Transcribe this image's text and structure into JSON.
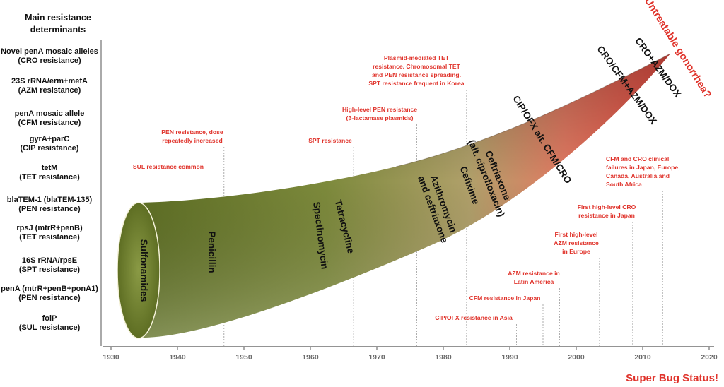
{
  "determinants": {
    "title": [
      "Main resistance",
      "determinants"
    ],
    "items": [
      {
        "line1": "Novel penA mosaic alleles",
        "line2": "(CRO resistance)"
      },
      {
        "line1": "23S rRNA/erm+mefA",
        "line2": "(AZM resistance)"
      },
      {
        "line1": "penA mosaic allele",
        "line2": "(CFM resistance)"
      },
      {
        "line1": "gyrA+parC",
        "line2": "(CIP resistance)"
      },
      {
        "line1": "tetM",
        "line2": "(TET resistance)"
      },
      {
        "line1": "blaTEM-1 (blaTEM-135)",
        "line2": "(PEN resistance)"
      },
      {
        "line1": "rpsJ (mtrR+penB)",
        "line2": "(TET resistance)"
      },
      {
        "line1": "16S rRNA/rpsE",
        "line2": "(SPT resistance)"
      },
      {
        "line1": "penA (mtrR+penB+ponA1)",
        "line2": "(PEN resistance)"
      },
      {
        "line1": "folP",
        "line2": "(SUL resistance)"
      }
    ]
  },
  "axis": {
    "years": [
      "1930",
      "1940",
      "1950",
      "1960",
      "1970",
      "1980",
      "1990",
      "2000",
      "2010",
      "2020"
    ],
    "min_year": 1930,
    "max_year": 2020
  },
  "drugs": [
    {
      "label": "Sulfonamides"
    },
    {
      "label": "Penicillin"
    },
    {
      "label": "Spectinomycin"
    },
    {
      "label": "Tetracycline"
    },
    {
      "label": "Azithromycin",
      "label2": "and ceftriaxone"
    },
    {
      "label": "Cefixime"
    },
    {
      "label": "Ceftriaxone",
      "label2": "(alt. ciprofloxacin)"
    },
    {
      "label": "CIP/OFX alt. CFM/CRO"
    },
    {
      "label": "CRO/CFM+AZM/DOX"
    },
    {
      "label": "CRO+AZM/DOX"
    }
  ],
  "events": [
    {
      "year": 1944,
      "lines": [
        "SUL resistance common"
      ]
    },
    {
      "year": 1947,
      "lines": [
        "PEN resistance, dose",
        "repeatedly increased"
      ]
    },
    {
      "year": 1966.5,
      "lines": [
        "SPT resistance"
      ]
    },
    {
      "year": 1976,
      "lines": [
        "High-level PEN resistance",
        "(β-lactamase plasmids)"
      ]
    },
    {
      "year": 1983.5,
      "lines": [
        "Plasmid-mediated TET",
        "resistance. Chromosomal TET",
        "and PEN resistance spreading.",
        "SPT resistance frequent in Korea"
      ]
    },
    {
      "year": 1991,
      "lines": [
        "CIP/OFX resistance in Asia"
      ]
    },
    {
      "year": 1995,
      "lines": [
        "CFM resistance in Japan"
      ]
    },
    {
      "year": 1997.5,
      "lines": [
        "AZM resistance in",
        "Latin America"
      ]
    },
    {
      "year": 2003.5,
      "lines": [
        "First high-level",
        "AZM resistance",
        "in Europe"
      ]
    },
    {
      "year": 2008.5,
      "lines": [
        "First high-level CRO",
        "resistance in Japan"
      ]
    },
    {
      "year": 2013,
      "lines": [
        "CFM and CRO clinical",
        "failures in Japan, Europe,",
        "Canada, Australia and",
        "South Africa"
      ]
    }
  ],
  "headlines": {
    "untreatable": "Untreatable gonorrhea?",
    "superbug": "Super Bug Status!"
  },
  "colors": {
    "horn_start": "#66772c",
    "horn_mid": "#a8ac6c",
    "horn_end": "#f0574a",
    "annotation": "#e0342c",
    "axis": "#555555"
  }
}
